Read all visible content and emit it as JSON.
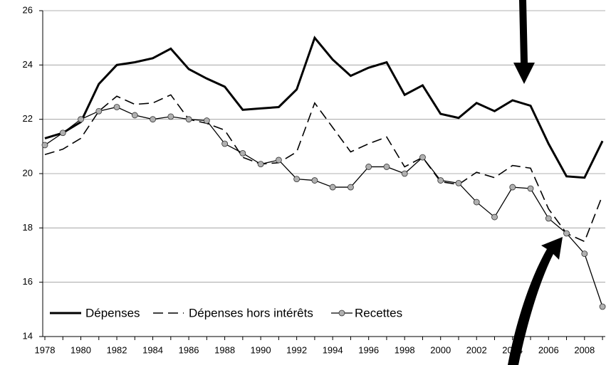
{
  "chart_data": {
    "type": "line",
    "categories": [
      "1978",
      null,
      "1980",
      null,
      "1982",
      null,
      "1984",
      null,
      "1986",
      null,
      "1988",
      null,
      "1990",
      null,
      "1992",
      null,
      "1994",
      null,
      "1996",
      null,
      "1998",
      null,
      "2000",
      null,
      "2002",
      null,
      "2004",
      null,
      "2006",
      null,
      "2008",
      null
    ],
    "series": [
      {
        "name": "Dépenses",
        "color": "#000000",
        "values": [
          21.3,
          21.5,
          21.9,
          23.3,
          24.0,
          24.1,
          24.25,
          24.6,
          23.85,
          23.5,
          23.2,
          22.35,
          22.4,
          22.45,
          23.1,
          25.0,
          24.2,
          23.6,
          23.9,
          24.1,
          22.9,
          23.25,
          22.2,
          22.05,
          22.6,
          22.3,
          22.7,
          22.5,
          21.1,
          19.9,
          19.85,
          21.2
        ]
      },
      {
        "name": "Dépenses hors intérêts",
        "color": "#000000",
        "values": [
          20.7,
          20.9,
          21.3,
          22.3,
          22.85,
          22.55,
          22.6,
          22.9,
          22.0,
          21.85,
          21.6,
          20.6,
          20.35,
          20.4,
          20.8,
          22.6,
          21.7,
          20.8,
          21.1,
          21.35,
          20.25,
          20.6,
          19.7,
          19.6,
          20.05,
          19.85,
          20.3,
          20.2,
          18.7,
          17.8,
          17.5,
          19.2
        ]
      },
      {
        "name": "Recettes",
        "color": "#000000",
        "values": [
          21.05,
          21.5,
          22.0,
          22.3,
          22.45,
          22.15,
          22.0,
          22.1,
          22.0,
          21.95,
          21.1,
          20.75,
          20.35,
          20.5,
          19.8,
          19.75,
          19.5,
          19.5,
          20.25,
          20.25,
          20.0,
          20.6,
          19.75,
          19.65,
          18.95,
          18.4,
          19.5,
          19.45,
          18.35,
          17.8,
          17.05,
          15.1
        ]
      }
    ],
    "ylim": [
      14,
      26
    ],
    "yticks": [
      14,
      16,
      18,
      20,
      22,
      24,
      26
    ],
    "grid": true
  }
}
